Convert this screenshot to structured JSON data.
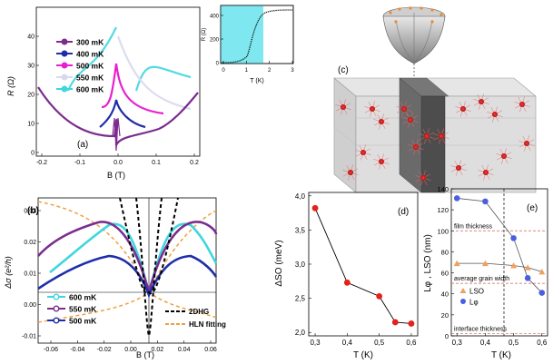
{
  "panel_a": {
    "label": "(a)",
    "ylabel": "R (Ω)",
    "xlabel": "B  (T)",
    "yticks": [
      "0",
      "10",
      "20",
      "30",
      "40"
    ],
    "xticks": [
      "-0.2",
      "-0.1",
      "0.0",
      "0.1",
      "0.2"
    ],
    "legend": [
      {
        "name": "300 mK",
        "color": "#7b2d8e"
      },
      {
        "name": "400 mK",
        "color": "#1f2ea8"
      },
      {
        "name": "500 mK",
        "color": "#e91fd0"
      },
      {
        "name": "550 mK",
        "color": "#d9d9ee"
      },
      {
        "name": "600 mK",
        "color": "#3fd6e0"
      }
    ],
    "inset": {
      "ylabel": "R (Ω)",
      "xlabel": "T (K)",
      "yticks": [
        "0",
        "200",
        "400"
      ],
      "xticks": [
        "0",
        "1",
        "2",
        "3"
      ],
      "highlight_color": "#7fe7f0"
    }
  },
  "panel_b": {
    "label": "(b)",
    "ylabel": "Δσ (e²/h)",
    "xlabel": "B (T)",
    "yticks": [
      "-0.01",
      "0.00",
      "0.01",
      "0.02",
      "0.03"
    ],
    "xticks": [
      "-0.06",
      "-0.04",
      "-0.02",
      "0.00",
      "0.02",
      "0.04",
      "0.06"
    ],
    "legend_left": [
      {
        "name": "600 mK",
        "color": "#3fd6e0"
      },
      {
        "name": "550 mK",
        "color": "#7b2d8e"
      },
      {
        "name": "500 mK",
        "color": "#1f2ea8"
      }
    ],
    "legend_right": [
      {
        "name": "2DHG",
        "style": "dashed-black"
      },
      {
        "name": "HLN fitting",
        "style": "dashed-orange"
      }
    ]
  },
  "panel_c": {
    "label": "(c)"
  },
  "chart_data": [
    {
      "type": "scatter",
      "panel": "(d)",
      "title": "",
      "xlabel": "T (K)",
      "ylabel": "ΔSO (meV)",
      "x": [
        0.3,
        0.4,
        0.5,
        0.55,
        0.6
      ],
      "values": [
        3.82,
        2.73,
        2.53,
        2.15,
        2.13
      ],
      "xlim": [
        0.28,
        0.62
      ],
      "ylim": [
        1.95,
        4.05
      ],
      "xticks": [
        "0,3",
        "0,4",
        "0,5",
        "0,6"
      ],
      "yticks": [
        "2,0",
        "2,5",
        "3,0",
        "3,5",
        "4,0"
      ],
      "color": "#e8201a"
    },
    {
      "type": "line",
      "panel": "(e)",
      "xlabel": "T (K)",
      "ylabel": "Lφ , LSO (nm)",
      "x": [
        0.3,
        0.4,
        0.5,
        0.55,
        0.6
      ],
      "series": [
        {
          "name": "LSO",
          "values": [
            69,
            69,
            67,
            65,
            61
          ],
          "color": "#f0a060"
        },
        {
          "name": "Lφ",
          "values": [
            131,
            128,
            93,
            55,
            41
          ],
          "color": "#4a5fe0"
        }
      ],
      "xlim": [
        0.28,
        0.62
      ],
      "ylim": [
        0,
        140
      ],
      "xticks": [
        "0,3",
        "0,4",
        "0,5",
        "0,6"
      ],
      "yticks": [
        "0",
        "20",
        "40",
        "60",
        "80",
        "100",
        "120",
        "140"
      ],
      "annotations": [
        "film thickness",
        "average grain width",
        "interface thickness"
      ],
      "legend": [
        "LSO",
        "Lφ"
      ]
    }
  ]
}
